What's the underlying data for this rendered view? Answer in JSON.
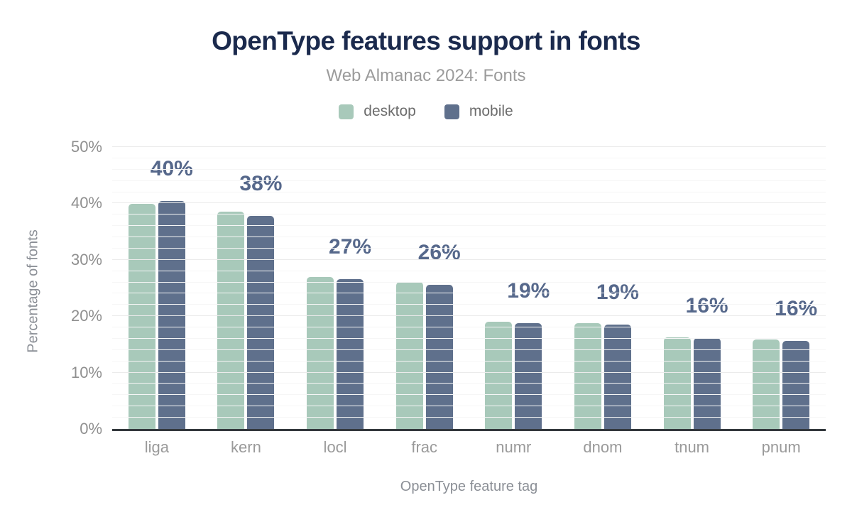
{
  "chart_data": {
    "type": "bar",
    "title": "OpenType features support in fonts",
    "subtitle": "Web Almanac 2024: Fonts",
    "categories": [
      "liga",
      "kern",
      "locl",
      "frac",
      "numr",
      "dnom",
      "tnum",
      "pnum"
    ],
    "series": [
      {
        "name": "desktop",
        "color": "#a8c9ba",
        "values": [
          39.9,
          38.5,
          26.9,
          26.1,
          19.0,
          18.8,
          16.3,
          15.9
        ]
      },
      {
        "name": "mobile",
        "color": "#5f708c",
        "values": [
          40.4,
          37.8,
          26.6,
          25.6,
          18.8,
          18.5,
          16.1,
          15.6
        ]
      }
    ],
    "value_labels": [
      "40%",
      "38%",
      "27%",
      "26%",
      "19%",
      "19%",
      "16%",
      "16%"
    ],
    "value_label_position": "above mobile bar",
    "xlabel": "OpenType feature tag",
    "ylabel": "Percentage of fonts",
    "ylim": [
      0,
      50
    ],
    "yticks": [
      {
        "value": 0,
        "label": "0%"
      },
      {
        "value": 10,
        "label": "10%"
      },
      {
        "value": 20,
        "label": "20%"
      },
      {
        "value": 30,
        "label": "30%"
      },
      {
        "value": 40,
        "label": "40%"
      },
      {
        "value": 50,
        "label": "50%"
      }
    ],
    "grid": {
      "horizontal": true,
      "minor_step": 2,
      "major_step": 10
    },
    "legend_position": "top center"
  },
  "colors": {
    "background": "#ffffff",
    "title": "#1b2a4d",
    "subtitle": "#9b9b9b",
    "value_label": "#56688b",
    "tick_label": "#9a9a9a",
    "axis_title": "#8b8f96",
    "axis_line": "#33383c",
    "grid_minor": "#f6f6f6",
    "grid_major": "#ebebeb",
    "desktop": "#a8c9ba",
    "mobile": "#5f708c"
  }
}
